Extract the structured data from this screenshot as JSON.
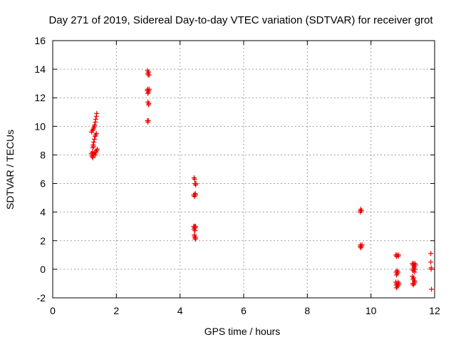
{
  "chart_data": {
    "type": "scatter",
    "title": "Day 271 of 2019, Sidereal Day-to-day VTEC variation (SDTVAR) for receiver grot",
    "xlabel": "GPS time / hours",
    "ylabel": "SDTVAR / TECUs",
    "xlim": [
      0,
      12
    ],
    "ylim": [
      -2,
      16
    ],
    "xticks": [
      0,
      2,
      4,
      6,
      8,
      10,
      12
    ],
    "yticks": [
      -2,
      0,
      2,
      4,
      6,
      8,
      10,
      12,
      14,
      16
    ],
    "grid": true,
    "marker": "+",
    "color": "#ee0000",
    "series": [
      {
        "name": "SDTVAR",
        "points": [
          [
            1.22,
            9.6
          ],
          [
            1.25,
            9.7
          ],
          [
            1.27,
            9.8
          ],
          [
            1.29,
            9.9
          ],
          [
            1.31,
            10.0
          ],
          [
            1.32,
            10.1
          ],
          [
            1.34,
            10.3
          ],
          [
            1.35,
            10.5
          ],
          [
            1.37,
            10.7
          ],
          [
            1.38,
            10.9
          ],
          [
            1.24,
            8.0
          ],
          [
            1.25,
            8.2
          ],
          [
            1.26,
            8.5
          ],
          [
            1.27,
            8.7
          ],
          [
            1.28,
            8.6
          ],
          [
            1.29,
            8.9
          ],
          [
            1.31,
            9.1
          ],
          [
            1.33,
            9.3
          ],
          [
            1.35,
            9.4
          ],
          [
            1.37,
            9.5
          ],
          [
            1.22,
            8.1
          ],
          [
            1.24,
            7.9
          ],
          [
            1.26,
            7.8
          ],
          [
            1.28,
            8.0
          ],
          [
            1.3,
            8.1
          ],
          [
            1.32,
            8.2
          ],
          [
            1.34,
            8.0
          ],
          [
            1.36,
            8.2
          ],
          [
            1.38,
            8.3
          ],
          [
            1.4,
            8.4
          ],
          [
            2.98,
            13.9
          ],
          [
            2.99,
            13.7
          ],
          [
            3.0,
            13.6
          ],
          [
            3.01,
            13.8
          ],
          [
            3.03,
            13.6
          ],
          [
            2.97,
            12.5
          ],
          [
            2.98,
            12.6
          ],
          [
            2.99,
            12.3
          ],
          [
            3.0,
            12.4
          ],
          [
            3.02,
            12.5
          ],
          [
            3.03,
            12.6
          ],
          [
            2.99,
            11.7
          ],
          [
            3.01,
            11.5
          ],
          [
            3.02,
            11.6
          ],
          [
            2.98,
            10.4
          ],
          [
            2.99,
            10.3
          ],
          [
            3.0,
            10.4
          ],
          [
            4.44,
            6.4
          ],
          [
            4.46,
            6.3
          ],
          [
            4.47,
            6.0
          ],
          [
            4.49,
            5.9
          ],
          [
            4.5,
            6.0
          ],
          [
            4.43,
            5.2
          ],
          [
            4.45,
            5.1
          ],
          [
            4.46,
            5.2
          ],
          [
            4.48,
            5.3
          ],
          [
            4.49,
            5.2
          ],
          [
            4.43,
            3.0
          ],
          [
            4.44,
            2.8
          ],
          [
            4.45,
            2.9
          ],
          [
            4.46,
            3.0
          ],
          [
            4.47,
            2.7
          ],
          [
            4.48,
            2.9
          ],
          [
            4.49,
            3.0
          ],
          [
            4.45,
            2.4
          ],
          [
            4.46,
            2.3
          ],
          [
            4.47,
            2.2
          ],
          [
            4.48,
            2.1
          ],
          [
            4.49,
            2.2
          ],
          [
            9.66,
            4.0
          ],
          [
            9.67,
            4.1
          ],
          [
            9.68,
            4.2
          ],
          [
            9.7,
            4.1
          ],
          [
            9.66,
            1.6
          ],
          [
            9.67,
            1.7
          ],
          [
            9.68,
            1.5
          ],
          [
            9.7,
            1.6
          ],
          [
            9.72,
            1.7
          ],
          [
            10.78,
            1.0
          ],
          [
            10.8,
            0.9
          ],
          [
            10.82,
            1.0
          ],
          [
            10.85,
            0.9
          ],
          [
            10.87,
            1.0
          ],
          [
            10.79,
            -0.2
          ],
          [
            10.8,
            -0.4
          ],
          [
            10.82,
            -0.1
          ],
          [
            10.83,
            -0.3
          ],
          [
            10.85,
            -0.2
          ],
          [
            10.78,
            -0.9
          ],
          [
            10.79,
            -1.1
          ],
          [
            10.8,
            -1.3
          ],
          [
            10.81,
            -1.0
          ],
          [
            10.83,
            -1.2
          ],
          [
            10.85,
            -0.9
          ],
          [
            10.86,
            -1.1
          ],
          [
            10.88,
            -1.0
          ],
          [
            11.3,
            0.4
          ],
          [
            11.32,
            0.3
          ],
          [
            11.34,
            0.4
          ],
          [
            11.36,
            0.2
          ],
          [
            11.38,
            0.4
          ],
          [
            11.4,
            0.3
          ],
          [
            11.31,
            0.0
          ],
          [
            11.33,
            -0.1
          ],
          [
            11.35,
            0.1
          ],
          [
            11.37,
            -0.2
          ],
          [
            11.39,
            0.0
          ],
          [
            11.3,
            -0.5
          ],
          [
            11.32,
            -0.7
          ],
          [
            11.34,
            -0.6
          ],
          [
            11.36,
            -0.8
          ],
          [
            11.38,
            -0.9
          ],
          [
            11.31,
            -1.0
          ],
          [
            11.33,
            -1.1
          ],
          [
            11.35,
            -1.0
          ],
          [
            11.37,
            -0.9
          ],
          [
            11.88,
            1.1
          ],
          [
            11.88,
            0.5
          ],
          [
            11.89,
            0.1
          ],
          [
            11.89,
            0.0
          ],
          [
            11.9,
            -1.4
          ]
        ]
      }
    ]
  }
}
